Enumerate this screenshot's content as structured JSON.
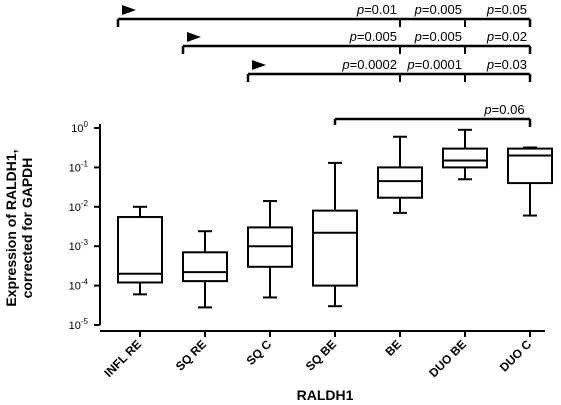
{
  "chart_data": {
    "type": "box",
    "title": "",
    "xlabel": "RALDH1",
    "ylabel_lines": [
      "Expression of RALDH1,",
      "corrected for GAPDH"
    ],
    "yscale": "log",
    "ylim": [
      1e-05,
      1
    ],
    "y_ticks": [
      {
        "value": 1,
        "base": "10",
        "exp": "0"
      },
      {
        "value": 0.1,
        "base": "10",
        "exp": "-1"
      },
      {
        "value": 0.01,
        "base": "10",
        "exp": "-2"
      },
      {
        "value": 0.001,
        "base": "10",
        "exp": "-3"
      },
      {
        "value": 0.0001,
        "base": "10",
        "exp": "-4"
      },
      {
        "value": 1e-05,
        "base": "10",
        "exp": "-5"
      }
    ],
    "categories": [
      "INFL RE",
      "SQ RE",
      "SQ C",
      "SQ BE",
      "BE",
      "DUO BE",
      "DUO C"
    ],
    "boxes": [
      {
        "min": 6e-05,
        "q1": 0.00012,
        "median": 0.0002,
        "q3": 0.0055,
        "max": 0.01
      },
      {
        "min": 2.8e-05,
        "q1": 0.00013,
        "median": 0.00022,
        "q3": 0.0007,
        "max": 0.0024
      },
      {
        "min": 5e-05,
        "q1": 0.0003,
        "median": 0.001,
        "q3": 0.003,
        "max": 0.014
      },
      {
        "min": 3e-05,
        "q1": 0.0001,
        "median": 0.0022,
        "q3": 0.008,
        "max": 0.13
      },
      {
        "min": 0.007,
        "q1": 0.017,
        "median": 0.045,
        "q3": 0.1,
        "max": 0.6
      },
      {
        "min": 0.05,
        "q1": 0.1,
        "median": 0.15,
        "q3": 0.3,
        "max": 0.9
      },
      {
        "min": 0.006,
        "q1": 0.04,
        "median": 0.2,
        "q3": 0.3,
        "max": 0.32
      }
    ],
    "comparisons": [
      {
        "start": 0,
        "end": 6,
        "arrow": true,
        "segments": [
          {
            "text": "=0.01",
            "from": 0,
            "to": 4
          },
          {
            "text": "=0.005",
            "from": 4,
            "to": 5
          },
          {
            "text": "=0.05",
            "from": 5,
            "to": 6
          }
        ]
      },
      {
        "start": 1,
        "end": 6,
        "arrow": true,
        "segments": [
          {
            "text": "=0.005",
            "from": 1,
            "to": 4
          },
          {
            "text": "=0.005",
            "from": 4,
            "to": 5
          },
          {
            "text": "=0.02",
            "from": 5,
            "to": 6
          }
        ]
      },
      {
        "start": 2,
        "end": 6,
        "arrow": true,
        "segments": [
          {
            "text": "=0.0002",
            "from": 2,
            "to": 4
          },
          {
            "text": "=0.0001",
            "from": 4,
            "to": 5
          },
          {
            "text": "=0.03",
            "from": 5,
            "to": 6
          }
        ]
      },
      {
        "start": 3,
        "end": 6,
        "arrow": false,
        "segments": [
          {
            "text": "=0.06",
            "from": 3,
            "to": 6
          }
        ]
      }
    ],
    "p_symbol": "p"
  }
}
